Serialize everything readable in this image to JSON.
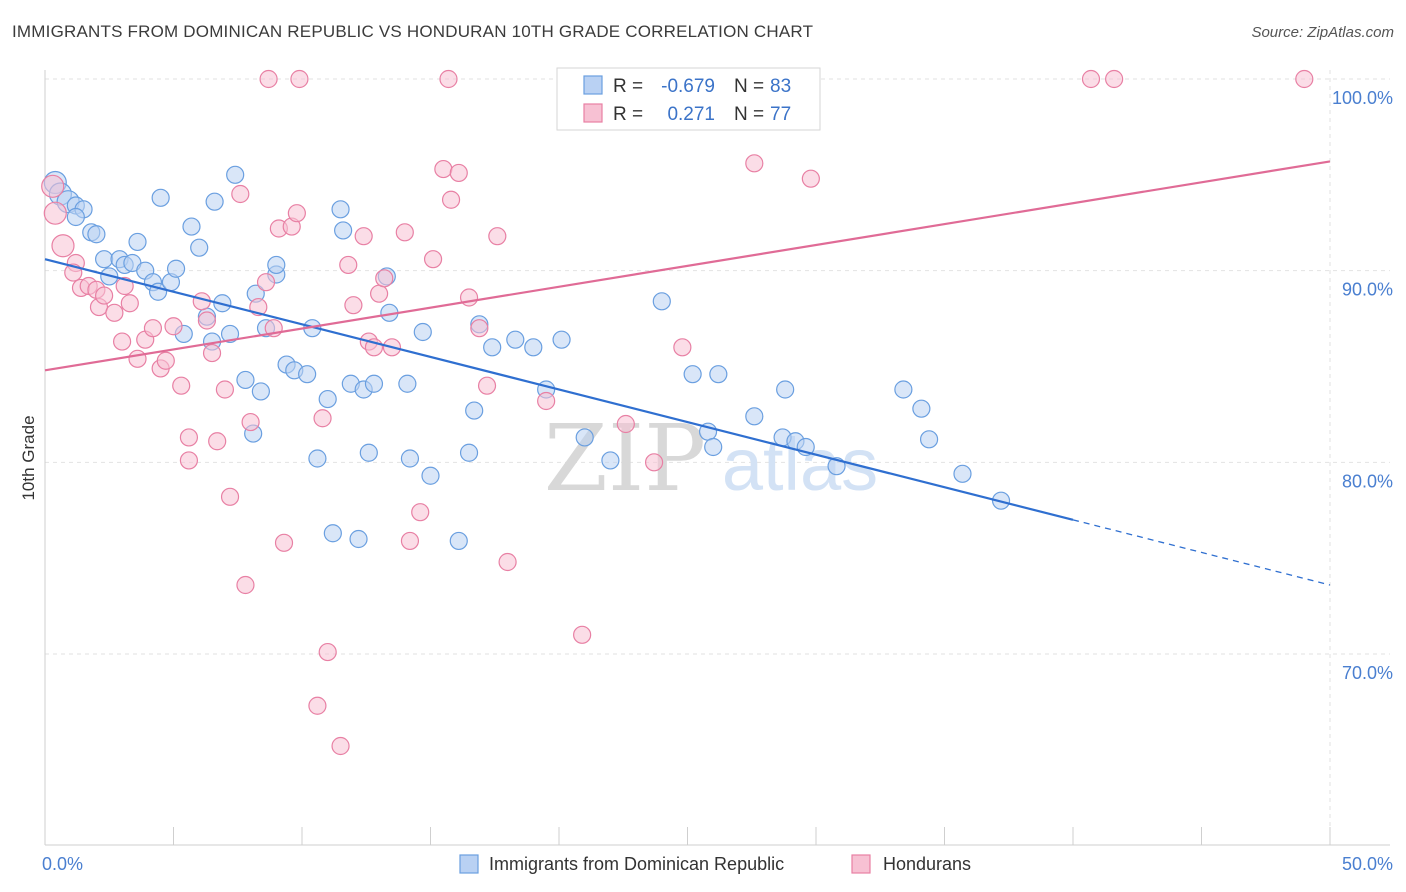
{
  "title": "IMMIGRANTS FROM DOMINICAN REPUBLIC VS HONDURAN 10TH GRADE CORRELATION CHART",
  "source": "Source: ZipAtlas.com",
  "watermark": {
    "zip": "ZIP",
    "atlas": "atlas"
  },
  "legend": {
    "r_label": "R =",
    "n_label": "N =",
    "rows": [
      {
        "r": "-0.679",
        "n": "83"
      },
      {
        "r": "0.271",
        "n": "77"
      }
    ]
  },
  "chart_data": {
    "type": "scatter",
    "title": "IMMIGRANTS FROM DOMINICAN REPUBLIC VS HONDURAN 10TH GRADE CORRELATION CHART",
    "xlabel": "",
    "ylabel": "10th Grade",
    "xlim": [
      0,
      50
    ],
    "ylim": [
      60,
      101
    ],
    "x_tick_labels": [
      {
        "value": 0,
        "label": "0.0%"
      },
      {
        "value": 50,
        "label": "50.0%"
      }
    ],
    "y_tick_labels": [
      {
        "value": 100,
        "label": "100.0%"
      },
      {
        "value": 90,
        "label": "90.0%"
      },
      {
        "value": 80,
        "label": "80.0%"
      },
      {
        "value": 70,
        "label": "70.0%"
      }
    ],
    "grid": true,
    "legend_placement": "top-center",
    "series": [
      {
        "name": "Immigrants from Dominican Republic",
        "color": "#6a9fe0",
        "fill": "#b9d1f3",
        "points": [
          [
            0.4,
            94.6
          ],
          [
            0.6,
            94.0
          ],
          [
            0.9,
            93.6
          ],
          [
            1.2,
            93.4
          ],
          [
            1.5,
            93.2
          ],
          [
            1.2,
            92.8
          ],
          [
            1.8,
            92.0
          ],
          [
            2.0,
            91.9
          ],
          [
            3.6,
            91.5
          ],
          [
            4.5,
            93.8
          ],
          [
            5.7,
            92.3
          ],
          [
            6.0,
            91.2
          ],
          [
            6.6,
            93.6
          ],
          [
            7.4,
            95.0
          ],
          [
            11.5,
            93.2
          ],
          [
            11.6,
            92.1
          ],
          [
            2.3,
            90.6
          ],
          [
            2.9,
            90.6
          ],
          [
            3.1,
            90.3
          ],
          [
            3.4,
            90.4
          ],
          [
            2.5,
            89.7
          ],
          [
            3.9,
            90.0
          ],
          [
            4.2,
            89.4
          ],
          [
            4.4,
            88.9
          ],
          [
            4.9,
            89.4
          ],
          [
            5.1,
            90.1
          ],
          [
            8.2,
            88.8
          ],
          [
            9.0,
            89.8
          ],
          [
            9.0,
            90.3
          ],
          [
            13.3,
            89.7
          ],
          [
            6.3,
            87.6
          ],
          [
            6.9,
            88.3
          ],
          [
            7.2,
            86.7
          ],
          [
            8.6,
            87.0
          ],
          [
            10.4,
            87.0
          ],
          [
            13.4,
            87.8
          ],
          [
            14.7,
            86.8
          ],
          [
            16.9,
            87.2
          ],
          [
            17.4,
            86.0
          ],
          [
            18.3,
            86.4
          ],
          [
            19.0,
            86.0
          ],
          [
            20.1,
            86.4
          ],
          [
            24.0,
            88.4
          ],
          [
            5.4,
            86.7
          ],
          [
            6.5,
            86.3
          ],
          [
            7.8,
            84.3
          ],
          [
            8.4,
            83.7
          ],
          [
            9.4,
            85.1
          ],
          [
            9.7,
            84.8
          ],
          [
            10.2,
            84.6
          ],
          [
            11.0,
            83.3
          ],
          [
            11.9,
            84.1
          ],
          [
            12.4,
            83.8
          ],
          [
            12.8,
            84.1
          ],
          [
            14.1,
            84.1
          ],
          [
            16.7,
            82.7
          ],
          [
            19.5,
            83.8
          ],
          [
            25.2,
            84.6
          ],
          [
            26.2,
            84.6
          ],
          [
            27.6,
            82.4
          ],
          [
            28.8,
            83.8
          ],
          [
            33.4,
            83.8
          ],
          [
            34.1,
            82.8
          ],
          [
            8.1,
            81.5
          ],
          [
            10.6,
            80.2
          ],
          [
            12.6,
            80.5
          ],
          [
            14.2,
            80.2
          ],
          [
            15.0,
            79.3
          ],
          [
            16.5,
            80.5
          ],
          [
            21.0,
            81.3
          ],
          [
            22.0,
            80.1
          ],
          [
            25.8,
            81.6
          ],
          [
            26.0,
            80.8
          ],
          [
            28.7,
            81.3
          ],
          [
            29.2,
            81.1
          ],
          [
            29.6,
            80.8
          ],
          [
            30.8,
            79.8
          ],
          [
            34.4,
            81.2
          ],
          [
            35.7,
            79.4
          ],
          [
            37.2,
            78.0
          ],
          [
            11.2,
            76.3
          ],
          [
            12.2,
            76.0
          ],
          [
            16.1,
            75.9
          ]
        ],
        "trend": {
          "x": [
            0,
            40,
            50
          ],
          "y": [
            90.6,
            77.0,
            73.6
          ]
        }
      },
      {
        "name": "Hondurans",
        "color": "#e880a4",
        "fill": "#f7c1d3",
        "points": [
          [
            0.3,
            94.4
          ],
          [
            0.4,
            93.0
          ],
          [
            0.7,
            91.3
          ],
          [
            1.2,
            90.4
          ],
          [
            1.1,
            89.9
          ],
          [
            1.4,
            89.1
          ],
          [
            1.7,
            89.2
          ],
          [
            2.0,
            89.0
          ],
          [
            2.1,
            88.1
          ],
          [
            2.3,
            88.7
          ],
          [
            2.7,
            87.8
          ],
          [
            3.0,
            86.3
          ],
          [
            3.1,
            89.2
          ],
          [
            3.3,
            88.3
          ],
          [
            3.6,
            85.4
          ],
          [
            3.9,
            86.4
          ],
          [
            4.2,
            87.0
          ],
          [
            4.5,
            84.9
          ],
          [
            4.7,
            85.3
          ],
          [
            5.0,
            87.1
          ],
          [
            5.3,
            84.0
          ],
          [
            5.6,
            81.3
          ],
          [
            5.6,
            80.1
          ],
          [
            6.1,
            88.4
          ],
          [
            6.3,
            87.4
          ],
          [
            6.5,
            85.7
          ],
          [
            6.7,
            81.1
          ],
          [
            7.0,
            83.8
          ],
          [
            7.2,
            78.2
          ],
          [
            7.6,
            94.0
          ],
          [
            7.8,
            73.6
          ],
          [
            8.0,
            82.1
          ],
          [
            8.3,
            88.1
          ],
          [
            8.6,
            89.4
          ],
          [
            8.9,
            87.0
          ],
          [
            9.1,
            92.2
          ],
          [
            9.3,
            75.8
          ],
          [
            9.6,
            92.3
          ],
          [
            9.8,
            93.0
          ],
          [
            10.6,
            67.3
          ],
          [
            10.8,
            82.3
          ],
          [
            11.0,
            70.1
          ],
          [
            11.5,
            65.2
          ],
          [
            11.8,
            90.3
          ],
          [
            12.0,
            88.2
          ],
          [
            12.4,
            91.8
          ],
          [
            12.6,
            86.3
          ],
          [
            12.8,
            86.0
          ],
          [
            13.0,
            88.8
          ],
          [
            13.2,
            89.6
          ],
          [
            13.5,
            86.0
          ],
          [
            14.0,
            92.0
          ],
          [
            14.2,
            75.9
          ],
          [
            14.6,
            77.4
          ],
          [
            15.1,
            90.6
          ],
          [
            15.5,
            95.3
          ],
          [
            15.8,
            93.7
          ],
          [
            16.1,
            95.1
          ],
          [
            16.5,
            88.6
          ],
          [
            16.9,
            87.0
          ],
          [
            17.2,
            84.0
          ],
          [
            17.6,
            91.8
          ],
          [
            18.0,
            74.8
          ],
          [
            19.5,
            83.2
          ],
          [
            20.9,
            71.0
          ],
          [
            22.6,
            82.0
          ],
          [
            23.7,
            80.0
          ],
          [
            24.8,
            86.0
          ],
          [
            27.6,
            95.6
          ],
          [
            29.8,
            94.8
          ],
          [
            8.7,
            100.0
          ],
          [
            9.9,
            100.0
          ],
          [
            15.7,
            100.0
          ],
          [
            28.6,
            100.0
          ],
          [
            40.7,
            100.0
          ],
          [
            41.6,
            100.0
          ],
          [
            49.0,
            100.0
          ]
        ],
        "trend": {
          "x": [
            0,
            50
          ],
          "y": [
            84.8,
            95.7
          ]
        }
      }
    ]
  }
}
